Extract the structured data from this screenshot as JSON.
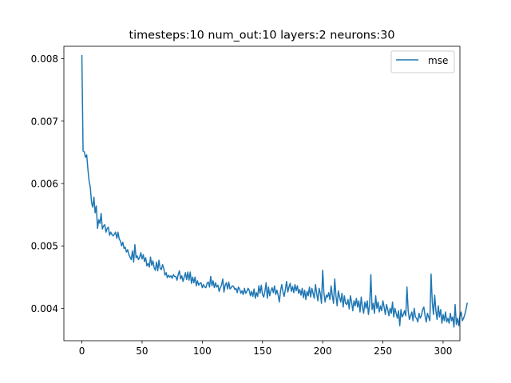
{
  "chart_data": {
    "type": "line",
    "title": "timesteps:10 num_out:10 layers:2 neurons:30",
    "xlabel": "",
    "ylabel": "",
    "xlim": [
      -14.95,
      313.95
    ],
    "ylim": [
      0.00348,
      0.0082
    ],
    "x_ticks": [
      0,
      50,
      100,
      150,
      200,
      250,
      300
    ],
    "y_ticks": [
      0.004,
      0.005,
      0.006,
      0.007,
      0.008
    ],
    "y_tick_labels": [
      "0.004",
      "0.005",
      "0.006",
      "0.007",
      "0.008"
    ],
    "grid": false,
    "legend_position": "top-right",
    "series": [
      {
        "name": "mse",
        "color": "#1f77b4",
        "x_start": 0,
        "x_step": 1,
        "values": [
          0.00805,
          0.00652,
          0.00651,
          0.00642,
          0.00646,
          0.00623,
          0.00604,
          0.00594,
          0.0057,
          0.00562,
          0.00578,
          0.00553,
          0.00564,
          0.00528,
          0.00542,
          0.00536,
          0.00552,
          0.00527,
          0.00532,
          0.00534,
          0.00522,
          0.00528,
          0.0053,
          0.00517,
          0.00522,
          0.00518,
          0.00516,
          0.00519,
          0.00522,
          0.00512,
          0.00522,
          0.00511,
          0.00508,
          0.005,
          0.00506,
          0.00496,
          0.00498,
          0.0049,
          0.00494,
          0.00486,
          0.00482,
          0.00478,
          0.00492,
          0.00474,
          0.00502,
          0.00481,
          0.00484,
          0.00478,
          0.00482,
          0.00489,
          0.00479,
          0.00486,
          0.00475,
          0.00481,
          0.00468,
          0.00472,
          0.00466,
          0.00482,
          0.00469,
          0.00476,
          0.00465,
          0.00461,
          0.00474,
          0.0046,
          0.00477,
          0.00464,
          0.00462,
          0.0047,
          0.00464,
          0.00453,
          0.00457,
          0.00449,
          0.00453,
          0.0045,
          0.00452,
          0.00448,
          0.00454,
          0.00451,
          0.00451,
          0.00445,
          0.00454,
          0.0046,
          0.00447,
          0.00452,
          0.00443,
          0.0045,
          0.00457,
          0.00446,
          0.00458,
          0.00445,
          0.00458,
          0.0044,
          0.0045,
          0.00441,
          0.0045,
          0.00436,
          0.00444,
          0.00437,
          0.0044,
          0.00441,
          0.00433,
          0.00438,
          0.00434,
          0.00433,
          0.0044,
          0.00442,
          0.00434,
          0.00451,
          0.00436,
          0.00444,
          0.00433,
          0.00441,
          0.00434,
          0.00437,
          0.00427,
          0.00433,
          0.00437,
          0.00447,
          0.00426,
          0.00437,
          0.00441,
          0.00431,
          0.00442,
          0.00431,
          0.00433,
          0.00436,
          0.00435,
          0.0043,
          0.00432,
          0.00425,
          0.00434,
          0.00431,
          0.00424,
          0.00428,
          0.00422,
          0.00432,
          0.00424,
          0.00427,
          0.00432,
          0.00429,
          0.0042,
          0.00427,
          0.00419,
          0.00431,
          0.00416,
          0.00425,
          0.00419,
          0.00436,
          0.00424,
          0.00437,
          0.00422,
          0.00418,
          0.00427,
          0.00441,
          0.00416,
          0.00434,
          0.0042,
          0.00428,
          0.00433,
          0.00425,
          0.00436,
          0.00422,
          0.00429,
          0.00421,
          0.0041,
          0.00428,
          0.00438,
          0.00426,
          0.00419,
          0.0043,
          0.00443,
          0.00426,
          0.00434,
          0.0044,
          0.00427,
          0.00435,
          0.00425,
          0.00438,
          0.00428,
          0.00436,
          0.00424,
          0.0043,
          0.00421,
          0.00432,
          0.00417,
          0.00429,
          0.00414,
          0.00427,
          0.0042,
          0.00434,
          0.00418,
          0.00432,
          0.00424,
          0.00416,
          0.00438,
          0.00424,
          0.00412,
          0.00432,
          0.00424,
          0.00408,
          0.00461,
          0.00425,
          0.0041,
          0.00421,
          0.00418,
          0.00425,
          0.00414,
          0.00436,
          0.0042,
          0.00408,
          0.00447,
          0.0042,
          0.00404,
          0.00428,
          0.00418,
          0.0041,
          0.00424,
          0.00402,
          0.0042,
          0.00408,
          0.00406,
          0.00414,
          0.00399,
          0.0042,
          0.0041,
          0.00396,
          0.00412,
          0.00404,
          0.00416,
          0.00402,
          0.00412,
          0.00394,
          0.00418,
          0.00402,
          0.00392,
          0.0041,
          0.004,
          0.00412,
          0.0039,
          0.00406,
          0.00454,
          0.00398,
          0.00408,
          0.00392,
          0.0042,
          0.004,
          0.0041,
          0.00394,
          0.00404,
          0.00396,
          0.00412,
          0.00402,
          0.0039,
          0.00406,
          0.00398,
          0.00388,
          0.004,
          0.00392,
          0.0041,
          0.00386,
          0.004,
          0.00392,
          0.00384,
          0.00396,
          0.00372,
          0.00398,
          0.00386,
          0.0039,
          0.00396,
          0.00388,
          0.00434,
          0.00396,
          0.00382,
          0.00388,
          0.00394,
          0.0038,
          0.004,
          0.00386,
          0.00384,
          0.00378,
          0.00392,
          0.00384,
          0.00388,
          0.00398,
          0.00402,
          0.00388,
          0.00378,
          0.00392,
          0.00386,
          0.0038,
          0.00455,
          0.0041,
          0.0039,
          0.00421,
          0.00396,
          0.00382,
          0.00404,
          0.00386,
          0.00398,
          0.00376,
          0.0039,
          0.0038,
          0.00394,
          0.00378,
          0.00384,
          0.00376,
          0.00392,
          0.0038,
          0.00386,
          0.0037,
          0.00406,
          0.00374,
          0.00384,
          0.00372,
          0.00388,
          0.00394,
          0.0038,
          0.00384,
          0.0039,
          0.00398,
          0.00408
        ]
      }
    ]
  }
}
